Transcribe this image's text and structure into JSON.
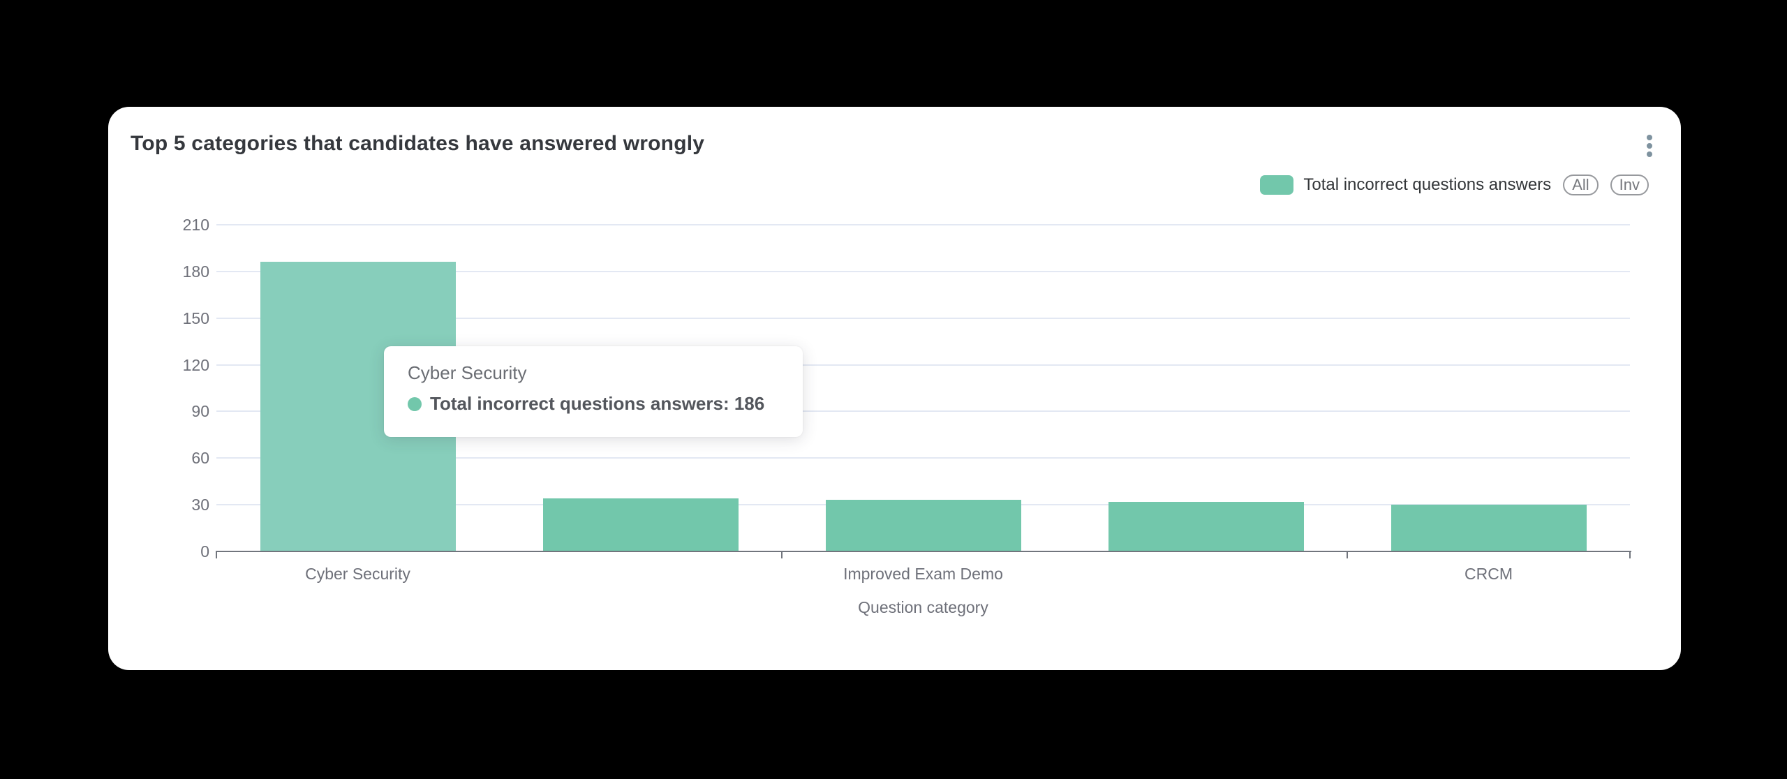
{
  "card": {
    "title": "Top 5 categories that candidates have answered wrongly"
  },
  "legend": {
    "label": "Total incorrect questions answers",
    "buttons": [
      {
        "label": "All"
      },
      {
        "label": "Inv"
      }
    ]
  },
  "tooltip": {
    "category": "Cyber Security",
    "series": "Total incorrect questions answers",
    "value": 186,
    "line": "Total incorrect questions answers: 186",
    "marker_color": "#72C7AB"
  },
  "chart_data": {
    "type": "bar",
    "title": "Top 5 categories that candidates have answered wrongly",
    "categories": [
      "Cyber Security",
      "",
      "Improved Exam Demo",
      "",
      "CRCM"
    ],
    "series": [
      {
        "name": "Total incorrect questions answers",
        "values": [
          186,
          34,
          33,
          32,
          30
        ],
        "color": "#72C7AB"
      }
    ],
    "highlighted_bar_index": 0,
    "highlight_color": "#87CEBB",
    "xlabel": "Question category",
    "ylabel": "",
    "ylim": [
      0,
      210
    ],
    "yticks": [
      0,
      30,
      60,
      90,
      120,
      150,
      180,
      210
    ],
    "grid": true,
    "legend_position": "top-right",
    "x_tick_boundaries_slots": [
      0,
      2,
      4,
      5
    ],
    "colors": {
      "gridline": "#E3E8F3",
      "axis": "#71757D",
      "tick_label": "#6E7079"
    }
  }
}
